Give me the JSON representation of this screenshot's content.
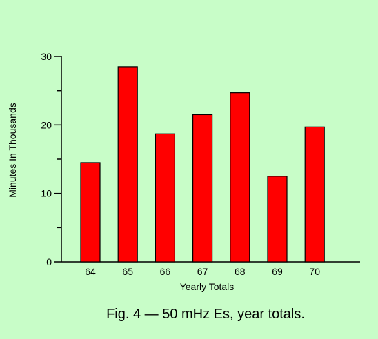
{
  "background": "#c8fdc8",
  "bar_color": "#ff0000",
  "caption": "Fig. 4 — 50 mHz Es, year totals.",
  "chart_data": {
    "type": "bar",
    "categories": [
      "64",
      "65",
      "66",
      "67",
      "68",
      "69",
      "70"
    ],
    "values": [
      14.5,
      28.5,
      18.7,
      21.5,
      24.7,
      12.5,
      19.7
    ],
    "title": "",
    "xlabel": "Yearly Totals",
    "ylabel": "Minutes In Thousands",
    "ylim": [
      0,
      30
    ],
    "yticks": [
      "0",
      "10",
      "20",
      "30"
    ],
    "grid": false,
    "legend": "none"
  }
}
